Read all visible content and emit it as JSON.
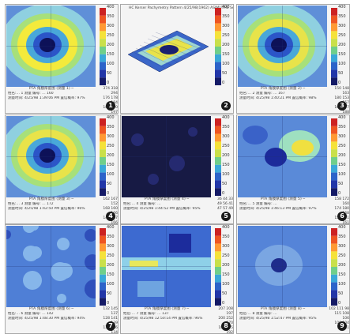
{
  "scale_ticks": [
    "400",
    "350",
    "300",
    "250",
    "200",
    "150",
    "100",
    "50",
    "0"
  ],
  "panels": [
    {
      "badge": "1",
      "variant": "ring_bright",
      "caption": {
        "title": "PTA 角膜厚度图 (测量 1) ─",
        "line1": "姓名:…   1   测量 编号: …   160",
        "line2": "测量时间: 4/25/98 1:39:06 PM   置信概率: 97%",
        "stats": [
          "374 318 294",
          "176 178 184",
          "180 200 197"
        ]
      }
    },
    {
      "badge": "2",
      "variant": "3d",
      "title": "HC  Kerser  Pachymetry  Pattern  4/25/98(1962)  ASIMUTHE  SensMap",
      "caption": null
    },
    {
      "badge": "3",
      "variant": "ring",
      "caption": {
        "title": "PTA 角膜厚度图 (测量 2) ─",
        "line1": "姓名:…   2   测量 编号: …   167",
        "line2": "测量时间: 4/25/98 1:40:21 PM   置信概率: 98%",
        "stats": [
          "150 148 163",
          "180 153 157",
          "160 177 188"
        ]
      }
    },
    {
      "badge": "4",
      "variant": "ring",
      "caption": {
        "title": "PTA 角膜厚度图 (测量 3) ─",
        "line1": "姓名:…   3   测量 编号: …   172",
        "line2": "测量时间: 4/25/98 1:42:50 PM   置信概率: 96%",
        "stats": [
          "162 167 152",
          "168 160 166",
          "141 167 166"
        ]
      }
    },
    {
      "badge": "5",
      "variant": "dark",
      "caption": {
        "title": "PTA 角膜厚度图 (测量 4) ─",
        "line1": "姓名:…   4   测量 编号: …",
        "line2": "测量时间: 4/25/98 1:44:52 PM   置信概率: 95%",
        "stats": [
          "36 44 33",
          "49 56 41",
          "47 57 49"
        ]
      }
    },
    {
      "badge": "6",
      "variant": "patchy",
      "caption": {
        "title": "PTA 角膜厚度图 (测量 5) ─",
        "line1": "姓名:…   5   测量 编号: …",
        "line2": "测量时间: 4/25/98 1:46:13 PM   置信概率: 97%",
        "stats": [
          "158 172 160",
          "174 180 168",
          "152 171 161"
        ]
      }
    },
    {
      "badge": "7",
      "variant": "mottled",
      "caption": {
        "title": "PTA 角膜厚度图 (测量 6) ─",
        "line1": "姓名:…   6   测量 编号: …   142",
        "line2": "测量时间: 4/25/98 1:48:30 PM   置信概率: 94%",
        "stats": [
          "132 145 137",
          "128 141 139",
          "130 136 134"
        ]
      }
    },
    {
      "badge": "8",
      "variant": "striped",
      "caption": {
        "title": "PTA 角膜厚度图 (测量 7) ─",
        "line1": "姓名:…   7   测量 编号: …   137",
        "line2": "测量时间: 4/25/98 12:50:14 PM   置信概率: 96%",
        "stats": [
          "207 208 197",
          "200 252 170",
          "188 205 192"
        ]
      }
    },
    {
      "badge": "9",
      "variant": "faint",
      "caption": {
        "title": "PTA 角膜厚度图 (测量 8) ─",
        "line1": "姓名:…   8   测量 编号: …",
        "line2": "测量时间: 4/25/98 1:52:47 PM   置信概率: 95%",
        "stats": [
          "102 111 98",
          "115 108 106",
          "100 104 111"
        ]
      }
    }
  ]
}
